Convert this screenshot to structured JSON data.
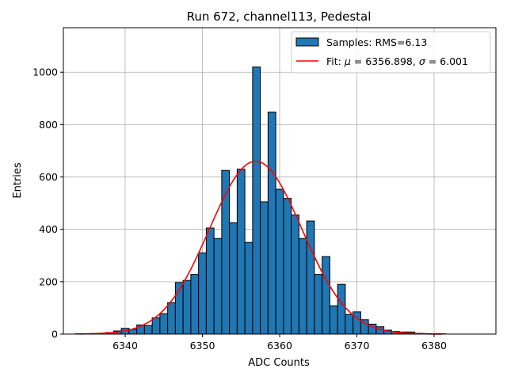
{
  "chart_data": {
    "type": "bar",
    "title": "Run 672, channel113, Pedestal",
    "xlabel": "ADC Counts",
    "ylabel": "Entries",
    "xlim": [
      6332,
      6388
    ],
    "ylim": [
      0,
      1170
    ],
    "xticks": [
      6340,
      6350,
      6360,
      6370,
      6380
    ],
    "yticks": [
      0,
      200,
      400,
      600,
      800,
      1000
    ],
    "grid": true,
    "legend_position": "top-right",
    "bar_color": "#1f77b4",
    "bar_edge_color": "#000000",
    "fit_color": "#ff0000",
    "bin_width": 1,
    "bins": [
      6334,
      6335,
      6336,
      6337,
      6338,
      6339,
      6340,
      6341,
      6342,
      6343,
      6344,
      6345,
      6346,
      6347,
      6348,
      6349,
      6350,
      6351,
      6352,
      6353,
      6354,
      6355,
      6356,
      6357,
      6358,
      6359,
      6360,
      6361,
      6362,
      6363,
      6364,
      6365,
      6366,
      6367,
      6368,
      6369,
      6370,
      6371,
      6372,
      6373,
      6374,
      6375,
      6376,
      6377,
      6378,
      6379,
      6380,
      6381
    ],
    "values": [
      1,
      1,
      2,
      3,
      6,
      12,
      22,
      18,
      35,
      33,
      62,
      78,
      120,
      197,
      205,
      228,
      310,
      405,
      365,
      625,
      425,
      630,
      350,
      1020,
      505,
      848,
      553,
      518,
      455,
      365,
      432,
      228,
      296,
      108,
      190,
      75,
      85,
      55,
      38,
      28,
      15,
      10,
      8,
      8,
      3,
      2,
      1,
      1
    ],
    "series": [
      {
        "name": "Samples: RMS=6.13",
        "kind": "histogram"
      },
      {
        "name": "Fit: μ = 6356.898, σ = 6.001",
        "kind": "gaussian-fit",
        "mu": 6356.898,
        "sigma": 6.001,
        "peak": 660,
        "x_range": [
          6334,
          6381
        ]
      }
    ],
    "legend": {
      "samples_prefix": "Samples: RMS=6.13",
      "fit_prefix": "Fit: ",
      "fit_mu_symbol": "μ",
      "fit_mu_text": " = 6356.898, ",
      "fit_sigma_symbol": "σ",
      "fit_sigma_text": " = 6.001"
    }
  }
}
